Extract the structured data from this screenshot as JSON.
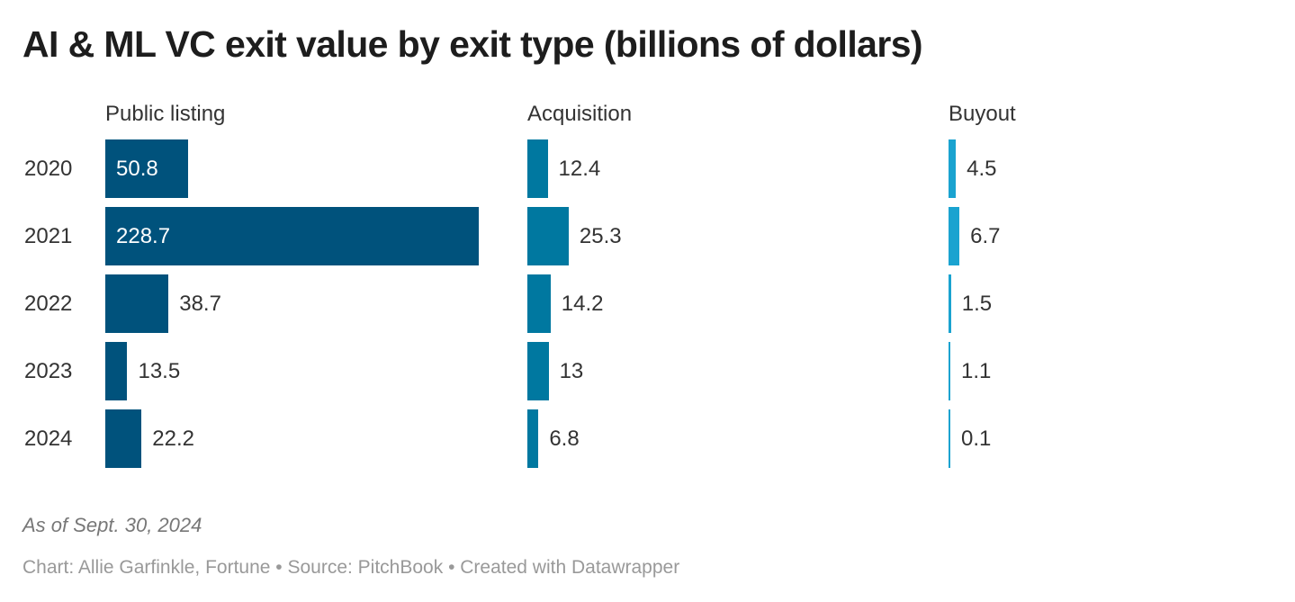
{
  "chart_data": {
    "type": "bar",
    "orientation": "horizontal",
    "title": "AI & ML VC exit value by exit type (billions of dollars)",
    "categories": [
      "2020",
      "2021",
      "2022",
      "2023",
      "2024"
    ],
    "series": [
      {
        "name": "Public listing",
        "color": "#00527c",
        "values": [
          50.8,
          228.7,
          38.7,
          13.5,
          22.2
        ]
      },
      {
        "name": "Acquisition",
        "color": "#0078a0",
        "values": [
          12.4,
          25.3,
          14.2,
          13,
          6.8
        ]
      },
      {
        "name": "Buyout",
        "color": "#1aa3d0",
        "values": [
          4.5,
          6.7,
          1.5,
          1.1,
          0.1
        ]
      }
    ],
    "layout": "small multiples, shared scale",
    "grid": false
  },
  "notes": "As of Sept. 30, 2024",
  "credit": "Chart: Allie Garfinkle, Fortune • Source: PitchBook • Created with Datawrapper"
}
